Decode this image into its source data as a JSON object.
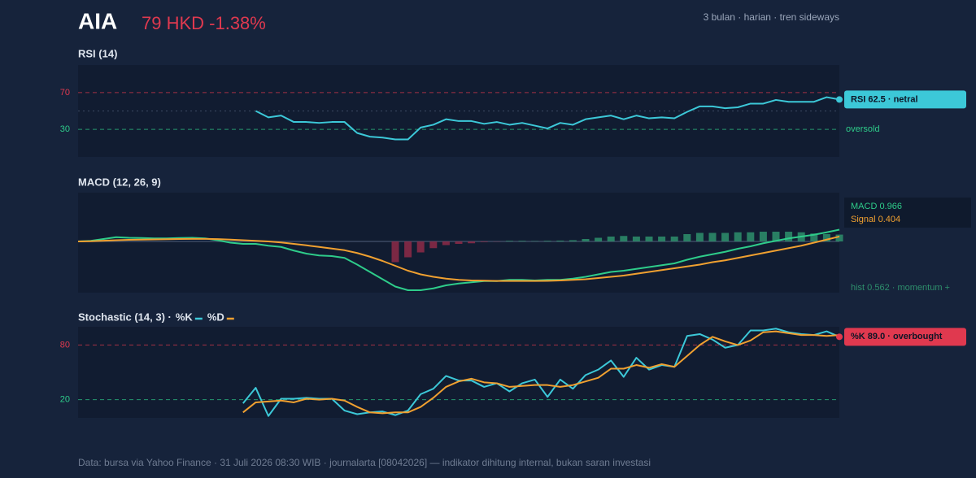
{
  "header": {
    "ticker": "AIA",
    "price": "79 HKD -1.38%",
    "subtitle": "3 bulan · harian · tren sideways"
  },
  "chart_data": [
    {
      "type": "line",
      "title": "RSI (14)",
      "ylim": [
        0,
        100
      ],
      "yticks": [
        70,
        30
      ],
      "tick_colors": [
        "#e0394f",
        "#2ecc8a"
      ],
      "tick_notes": [
        null,
        "oversold"
      ],
      "reference_lines": [
        50
      ],
      "badge": {
        "text": "RSI 62.5 · netral",
        "color": "#3cc8d8"
      },
      "series": [
        {
          "color": "#3cc8d8",
          "values": [
            null,
            null,
            null,
            null,
            null,
            null,
            null,
            null,
            null,
            null,
            null,
            null,
            null,
            null,
            50,
            43,
            45,
            38,
            38,
            37,
            38,
            38,
            26,
            22,
            21,
            19,
            19,
            32,
            35,
            41,
            39,
            39,
            36,
            38,
            35,
            37,
            34,
            31,
            37,
            35,
            41,
            43,
            45,
            41,
            45,
            42,
            43,
            42,
            49,
            55,
            55,
            53,
            54,
            58,
            58,
            62,
            60,
            60,
            60,
            65,
            62.5
          ]
        }
      ]
    },
    {
      "type": "line",
      "title": "MACD (12, 26, 9)",
      "ylim": [
        -4.2,
        4
      ],
      "series": [
        {
          "label": "MACD 0.966",
          "color": "#2ecc8a",
          "values": [
            0,
            0.05,
            0.2,
            0.35,
            0.3,
            0.28,
            0.25,
            0.25,
            0.28,
            0.3,
            0.25,
            0.1,
            -0.1,
            -0.2,
            -0.2,
            -0.35,
            -0.45,
            -0.75,
            -1.0,
            -1.15,
            -1.2,
            -1.35,
            -1.9,
            -2.5,
            -3.1,
            -3.7,
            -4.0,
            -4.0,
            -3.85,
            -3.6,
            -3.45,
            -3.35,
            -3.25,
            -3.25,
            -3.15,
            -3.15,
            -3.2,
            -3.15,
            -3.15,
            -3.05,
            -2.9,
            -2.7,
            -2.5,
            -2.4,
            -2.25,
            -2.1,
            -1.95,
            -1.8,
            -1.5,
            -1.25,
            -1.05,
            -0.85,
            -0.6,
            -0.4,
            -0.15,
            0.05,
            0.25,
            0.4,
            0.55,
            0.75,
            0.966
          ]
        },
        {
          "label": "Signal 0.404",
          "color": "#f0a030",
          "values": [
            0,
            0.02,
            0.06,
            0.1,
            0.13,
            0.15,
            0.17,
            0.18,
            0.2,
            0.21,
            0.21,
            0.19,
            0.15,
            0.1,
            0.05,
            0,
            -0.08,
            -0.2,
            -0.32,
            -0.45,
            -0.58,
            -0.72,
            -0.95,
            -1.25,
            -1.6,
            -2.0,
            -2.4,
            -2.7,
            -2.9,
            -3.05,
            -3.15,
            -3.2,
            -3.22,
            -3.24,
            -3.24,
            -3.24,
            -3.24,
            -3.23,
            -3.2,
            -3.15,
            -3.1,
            -3.0,
            -2.9,
            -2.8,
            -2.65,
            -2.5,
            -2.35,
            -2.2,
            -2.05,
            -1.9,
            -1.7,
            -1.55,
            -1.35,
            -1.15,
            -0.95,
            -0.75,
            -0.55,
            -0.35,
            -0.1,
            0.15,
            0.404
          ]
        },
        {
          "type": "bar",
          "label": "hist 0.562 · momentum +",
          "color": "#2e8f6c",
          "negative_color": "#8e2a48",
          "values": [
            null,
            null,
            null,
            null,
            null,
            null,
            null,
            null,
            null,
            null,
            null,
            null,
            null,
            null,
            null,
            null,
            null,
            null,
            null,
            null,
            null,
            null,
            null,
            null,
            null,
            -1.7,
            -1.3,
            -0.9,
            -0.55,
            -0.3,
            -0.2,
            -0.15,
            -0.05,
            -0.02,
            0.05,
            0.05,
            0.03,
            0.05,
            0.07,
            0.1,
            0.2,
            0.3,
            0.4,
            0.45,
            0.4,
            0.4,
            0.4,
            0.4,
            0.6,
            0.7,
            0.7,
            0.7,
            0.75,
            0.75,
            0.8,
            0.8,
            0.8,
            0.75,
            0.65,
            0.6,
            0.562
          ]
        }
      ]
    },
    {
      "type": "line",
      "title": "Stochastic (14, 3) ·",
      "ylim": [
        0,
        100
      ],
      "yticks": [
        80,
        20
      ],
      "tick_colors": [
        "#e0394f",
        "#2ecc8a"
      ],
      "badge": {
        "text": "%K 89.0 · overbought",
        "color": "#e0394f"
      },
      "series": [
        {
          "name": "%K",
          "color": "#3cc8d8",
          "values": [
            null,
            null,
            null,
            null,
            null,
            null,
            null,
            null,
            null,
            null,
            null,
            null,
            null,
            16,
            33,
            2,
            21,
            21,
            22,
            21,
            21,
            8,
            4,
            6,
            7,
            3,
            8,
            26,
            32,
            46,
            41,
            41,
            34,
            38,
            29,
            38,
            42,
            23,
            42,
            32,
            47,
            53,
            63,
            45,
            66,
            53,
            58,
            56,
            90,
            92,
            86,
            77,
            80,
            96,
            96,
            98,
            94,
            92,
            91,
            95,
            89
          ]
        },
        {
          "name": "%D",
          "color": "#f0a030",
          "values": [
            null,
            null,
            null,
            null,
            null,
            null,
            null,
            null,
            null,
            null,
            null,
            null,
            null,
            6,
            17,
            18,
            19,
            17,
            21,
            20,
            21,
            19,
            12,
            6,
            5,
            6,
            6,
            12,
            22,
            34,
            40,
            43,
            39,
            38,
            34,
            35,
            36,
            36,
            34,
            36,
            40,
            44,
            54,
            54,
            58,
            55,
            59,
            56,
            68,
            80,
            89,
            84,
            80,
            85,
            94,
            95,
            93,
            91,
            91,
            90,
            91
          ]
        }
      ]
    }
  ],
  "footer": "Data: bursa via Yahoo Finance · 31 Juli 2026 08:30 WIB · journalarta [08042026] — indikator dihitung internal, bukan saran investasi"
}
